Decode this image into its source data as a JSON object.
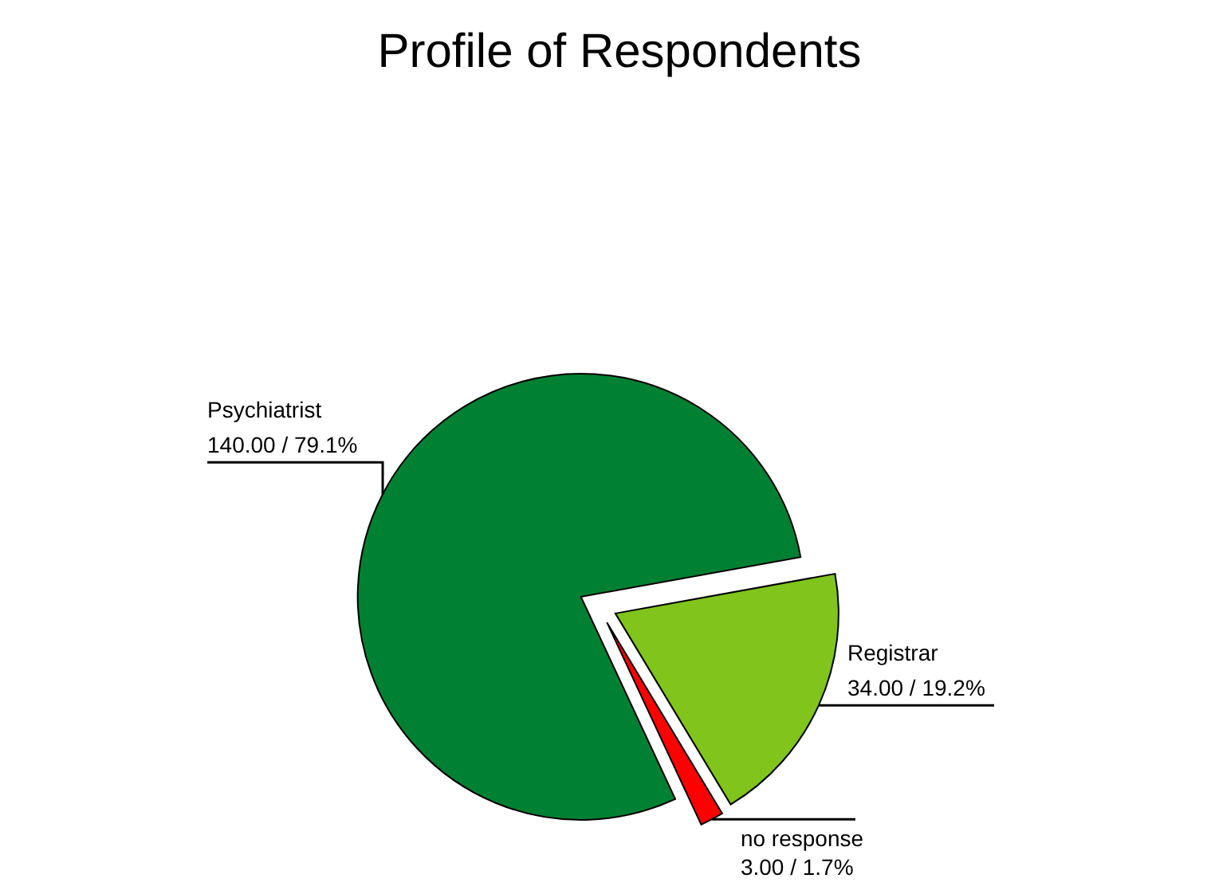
{
  "chart_data": {
    "type": "pie",
    "title": "Profile of Respondents",
    "categories": [
      "Psychiatrist",
      "Registrar",
      "no response"
    ],
    "values": [
      140,
      34,
      3
    ],
    "colors": [
      "#008033",
      "#80c41c",
      "#ff0000"
    ],
    "value_labels": [
      "140.00 / 79.1%",
      "34.00 / 19.2%",
      "3.00 / 1.7%"
    ]
  }
}
